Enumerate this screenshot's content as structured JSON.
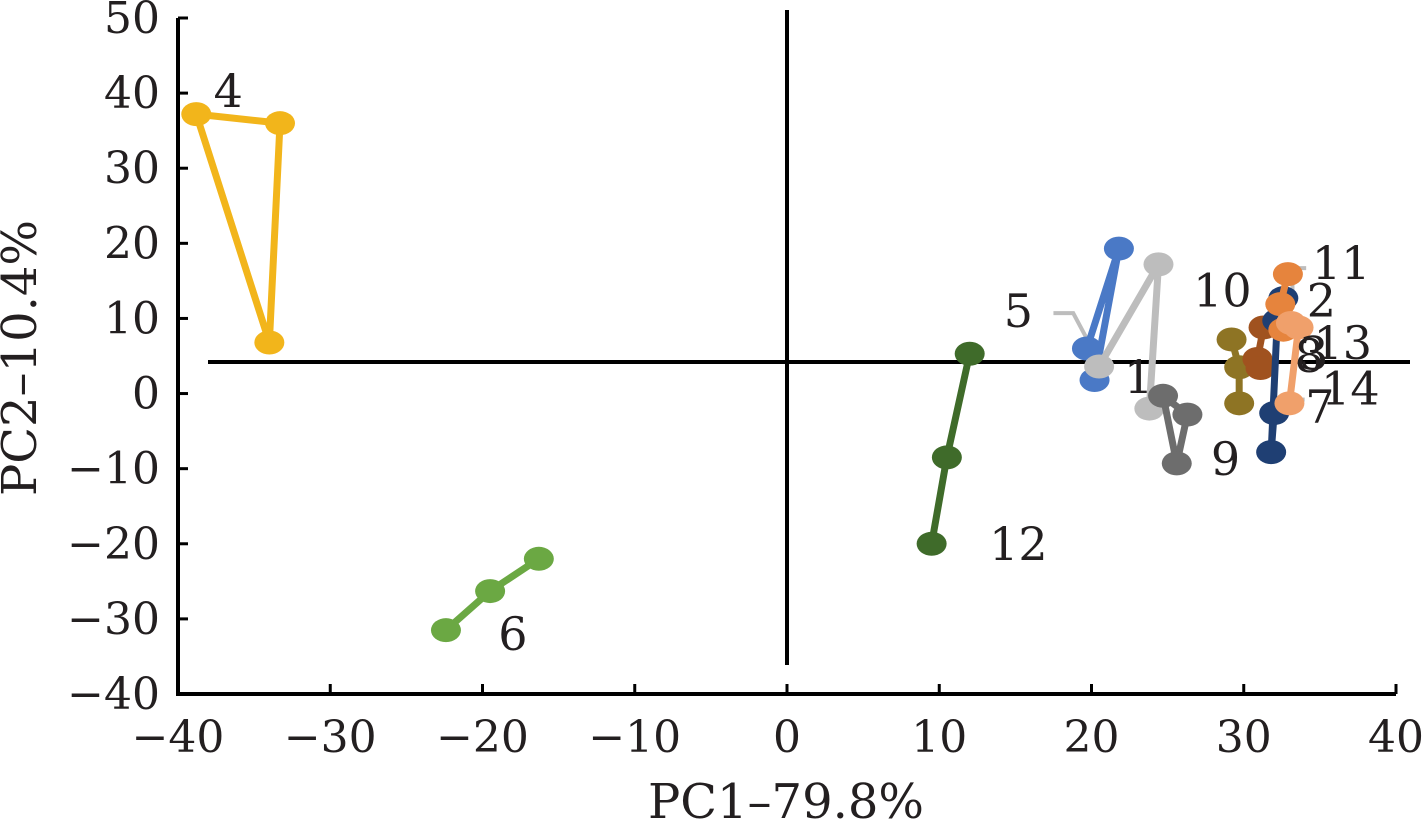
{
  "chart_data": {
    "type": "scatter",
    "title": "",
    "xlabel": "PC1–79.8%",
    "ylabel": "PC2–10.4%",
    "xlim": [
      -40,
      40
    ],
    "ylim": [
      -40,
      50
    ],
    "x_ticks": [
      -40,
      -30,
      -20,
      -10,
      0,
      10,
      20,
      30,
      40
    ],
    "y_ticks": [
      -40,
      -30,
      -20,
      -10,
      0,
      10,
      20,
      30,
      40,
      50
    ],
    "x_tick_labels": [
      "−40",
      "−30",
      "−20",
      "−10",
      "0",
      "10",
      "20",
      "30",
      "40"
    ],
    "y_tick_labels": [
      "−40",
      "−30",
      "−20",
      "−10",
      "0",
      "10",
      "20",
      "30",
      "40",
      "50"
    ],
    "grid": false,
    "legend": "none",
    "connected": true,
    "series": [
      {
        "name": "4",
        "color": "#f2b51b",
        "points": [
          [
            -38.8,
            37.2
          ],
          [
            -33.3,
            36.0
          ],
          [
            -34.0,
            6.8
          ]
        ],
        "closed": true,
        "label_at": [
          -36.7,
          40.3
        ]
      },
      {
        "name": "6",
        "color": "#6ba843",
        "points": [
          [
            -22.4,
            -31.5
          ],
          [
            -19.5,
            -26.3
          ],
          [
            -16.3,
            -22.0
          ]
        ],
        "closed": false,
        "label_at": [
          -18.0,
          -32.0
        ]
      },
      {
        "name": "12",
        "color": "#3f6b2a",
        "points": [
          [
            9.5,
            -20.0
          ],
          [
            10.5,
            -8.5
          ],
          [
            12.0,
            5.3
          ]
        ],
        "closed": false,
        "label_at": [
          15.2,
          -20.0
        ]
      },
      {
        "name": "5",
        "color": "#4a79c6",
        "points": [
          [
            19.7,
            6.0
          ],
          [
            21.8,
            19.3
          ],
          [
            20.2,
            1.8
          ]
        ],
        "closed": true,
        "label_at": [
          15.2,
          11.0
        ]
      },
      {
        "name": "1",
        "color": "#bdbdbd",
        "points": [
          [
            20.5,
            3.6
          ],
          [
            24.4,
            17.2
          ],
          [
            23.8,
            -2.0
          ]
        ],
        "closed": false,
        "label_at": [
          23.1,
          2.2
        ]
      },
      {
        "name": "9",
        "color": "#6d6d6d",
        "points": [
          [
            24.7,
            -0.3
          ],
          [
            25.6,
            -9.3
          ],
          [
            26.3,
            -2.8
          ]
        ],
        "closed": true,
        "label_at": [
          28.8,
          -8.7
        ]
      },
      {
        "name": "10",
        "color": "#8e7424",
        "points": [
          [
            29.2,
            7.2
          ],
          [
            29.7,
            3.5
          ],
          [
            29.7,
            -1.3
          ]
        ],
        "closed": false,
        "label_at": [
          28.6,
          13.7
        ]
      },
      {
        "name": "8",
        "color": "#a0521f",
        "points": [
          [
            31.3,
            8.8
          ],
          [
            30.9,
            4.6
          ],
          [
            31.1,
            3.4
          ]
        ],
        "closed": false,
        "label_at": [
          34.3,
          5.0
        ]
      },
      {
        "name": "3",
        "color": "#1f3f73",
        "points": [
          [
            32.6,
            12.7
          ],
          [
            32.2,
            9.7
          ],
          [
            31.8,
            -7.8
          ],
          [
            32.0,
            -2.6
          ]
        ],
        "closed": false,
        "label_at": [
          34.6,
          5.3
        ]
      },
      {
        "name": "2",
        "color": "#e6843d",
        "points": [
          [
            32.9,
            15.9
          ],
          [
            32.4,
            11.9
          ],
          [
            32.6,
            8.5
          ]
        ],
        "closed": false,
        "label_at": [
          35.1,
          12.4
        ]
      },
      {
        "name": "13",
        "color": "#f0a06b",
        "points": [
          [
            33.1,
            9.4
          ],
          [
            33.6,
            8.8
          ],
          [
            33.0,
            -1.3
          ]
        ],
        "closed": false,
        "label_at": [
          36.5,
          6.7
        ]
      },
      {
        "name": "11",
        "label_at": [
          36.4,
          17.4
        ]
      },
      {
        "name": "7",
        "label_at": [
          35.0,
          -1.8
        ]
      },
      {
        "name": "14",
        "label_at": [
          37.0,
          0.7
        ]
      }
    ],
    "reference_lines": {
      "vertical_x": 0,
      "horizontal_y": 4.2
    },
    "leader_lines": [
      {
        "label": "5",
        "color": "#bdbdbd",
        "points": [
          [
            17.5,
            10.7
          ],
          [
            18.8,
            10.7
          ],
          [
            20.3,
            5.0
          ]
        ]
      },
      {
        "label": "11",
        "color": "#bdbdbd",
        "points": [
          [
            33.2,
            12.2
          ],
          [
            33.2,
            16.7
          ],
          [
            34.1,
            16.7
          ]
        ]
      },
      {
        "label": "14",
        "color": "#bdbdbd",
        "points": [
          [
            33.1,
            -0.8
          ],
          [
            34.0,
            -0.8
          ]
        ]
      }
    ]
  }
}
